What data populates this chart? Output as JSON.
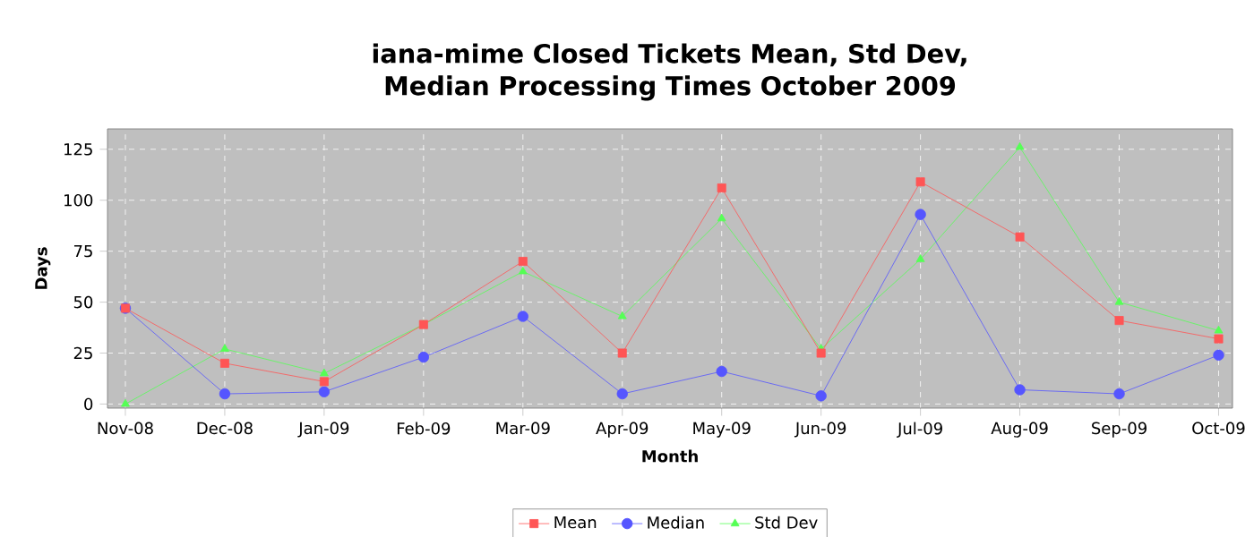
{
  "chart_data": {
    "type": "line",
    "title": "iana-mime Closed Tickets Mean, Std Dev, Median Processing Times October 2009",
    "xlabel": "Month",
    "ylabel": "Days",
    "categories": [
      "Nov-08",
      "Dec-08",
      "Jan-09",
      "Feb-09",
      "Mar-09",
      "Apr-09",
      "May-09",
      "Jun-09",
      "Jul-09",
      "Aug-09",
      "Sep-09",
      "Oct-09"
    ],
    "series": [
      {
        "name": "Mean",
        "color": "#ff5555",
        "marker": "square",
        "values": [
          47,
          20,
          11,
          39,
          70,
          25,
          106,
          25,
          109,
          82,
          41,
          32
        ]
      },
      {
        "name": "Median",
        "color": "#5555ff",
        "marker": "circle",
        "values": [
          47,
          5,
          6,
          23,
          43,
          5,
          16,
          4,
          93,
          7,
          5,
          24
        ]
      },
      {
        "name": "Std Dev",
        "color": "#55ff55",
        "marker": "triangle",
        "values": [
          0,
          27,
          15,
          39,
          65,
          43,
          91,
          27,
          71,
          126,
          50,
          36
        ]
      }
    ],
    "ylim": [
      -2,
      135
    ],
    "yticks": [
      0,
      25,
      50,
      75,
      100,
      125
    ],
    "grid": true,
    "legend": "bottom",
    "line_style": "solid"
  }
}
